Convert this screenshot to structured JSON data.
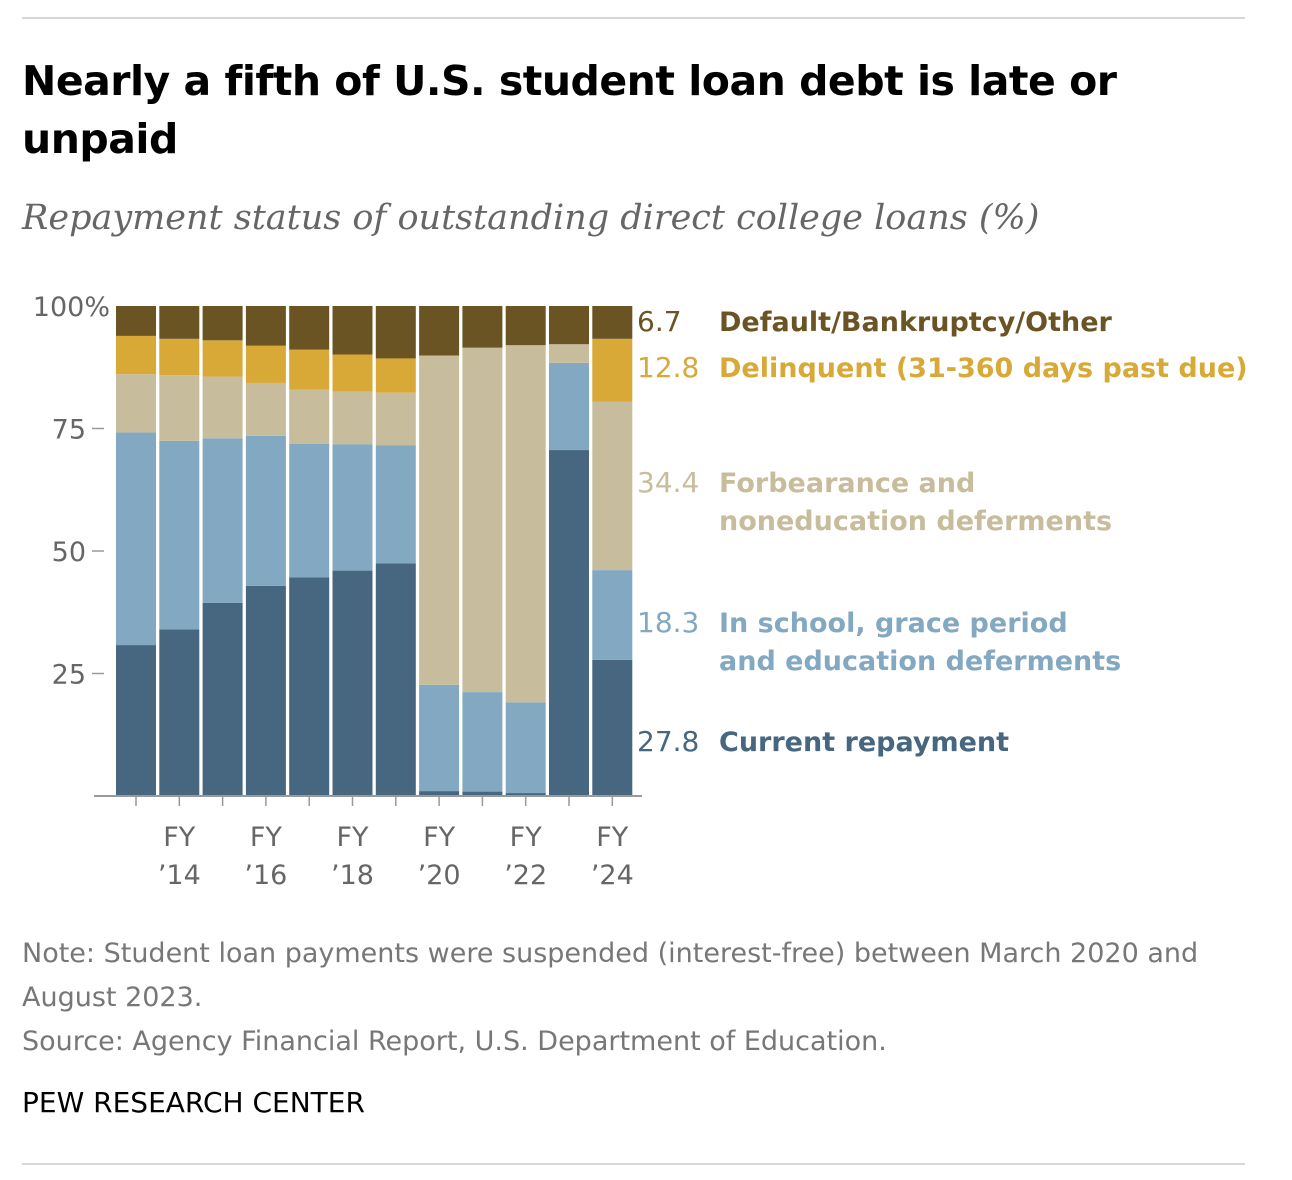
{
  "header": {
    "title": "Nearly a fifth of U.S. student loan debt is late or unpaid",
    "subtitle": "Repayment status of outstanding direct college loans (%)"
  },
  "chart_data": {
    "type": "bar",
    "stacked": true,
    "categories": [
      "FY '13",
      "FY '14",
      "FY '15",
      "FY '16",
      "FY '17",
      "FY '18",
      "FY '19",
      "FY '20",
      "FY '21",
      "FY '22",
      "FY '23",
      "FY '24"
    ],
    "x_tick_labels": [
      {
        "category": "FY '14",
        "line1": "FY",
        "line2": "’14"
      },
      {
        "category": "FY '16",
        "line1": "FY",
        "line2": "’16"
      },
      {
        "category": "FY '18",
        "line1": "FY",
        "line2": "’18"
      },
      {
        "category": "FY '20",
        "line1": "FY",
        "line2": "’20"
      },
      {
        "category": "FY '22",
        "line1": "FY",
        "line2": "’22"
      },
      {
        "category": "FY '24",
        "line1": "FY",
        "line2": "’24"
      }
    ],
    "y_ticks": [
      {
        "value": 100,
        "label": "100%"
      },
      {
        "value": 75,
        "label": "75"
      },
      {
        "value": 50,
        "label": "50"
      },
      {
        "value": 25,
        "label": "25"
      }
    ],
    "ylim": [
      0,
      100
    ],
    "grid": false,
    "series": [
      {
        "name": "Current repayment",
        "color": "#46677f",
        "values": [
          30.8,
          34.0,
          39.4,
          42.9,
          44.6,
          46.0,
          47.5,
          1.0,
          0.9,
          0.6,
          70.6,
          27.8
        ]
      },
      {
        "name": "In school, grace period and education deferments",
        "color": "#83a8c2",
        "values": [
          43.4,
          38.5,
          33.6,
          30.6,
          27.3,
          25.8,
          24.1,
          21.7,
          20.3,
          18.5,
          17.8,
          18.3
        ]
      },
      {
        "name": "Forbearance and noneducation deferments",
        "color": "#c7bd9c",
        "values": [
          11.9,
          13.4,
          12.6,
          10.8,
          11.0,
          10.7,
          10.7,
          67.2,
          70.3,
          72.9,
          3.8,
          34.4
        ]
      },
      {
        "name": "Delinquent (31-360 days past due)",
        "color": "#d8a936",
        "values": [
          7.8,
          7.4,
          7.4,
          7.6,
          8.2,
          7.6,
          7.0,
          0.0,
          0.0,
          0.0,
          0.0,
          12.8
        ]
      },
      {
        "name": "Default/Bankruptcy/Other",
        "color": "#6b5424",
        "values": [
          6.1,
          6.7,
          7.0,
          8.1,
          8.9,
          9.9,
          10.7,
          10.1,
          8.5,
          8.0,
          7.8,
          6.7
        ]
      }
    ],
    "labels": [
      {
        "value": "6.7",
        "text_lines": [
          "Default/Bankruptcy/Other"
        ],
        "color": "#6b5424"
      },
      {
        "value": "12.8",
        "text_lines": [
          "Delinquent (31-360 days past due)"
        ],
        "color": "#d8a936"
      },
      {
        "value": "34.4",
        "text_lines": [
          "Forbearance and",
          "noneducation deferments"
        ],
        "color": "#c7bd9c"
      },
      {
        "value": "18.3",
        "text_lines": [
          "In school, grace period",
          "and education deferments"
        ],
        "color": "#83a8c2"
      },
      {
        "value": "27.8",
        "text_lines": [
          "Current repayment"
        ],
        "color": "#46677f"
      }
    ]
  },
  "footer": {
    "note": "Note: Student loan payments were suspended (interest-free) between March 2020 and August 2023.",
    "source": "Source: Agency Financial Report, U.S. Department of Education.",
    "credit": "PEW RESEARCH CENTER"
  }
}
